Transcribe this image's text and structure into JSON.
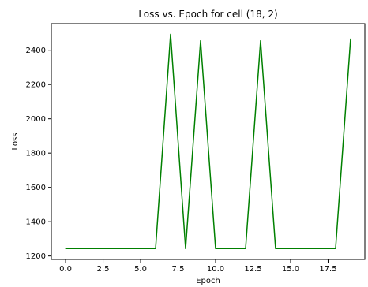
{
  "chart_data": {
    "type": "line",
    "title": "Loss vs. Epoch for cell (18, 2)",
    "xlabel": "Epoch",
    "ylabel": "Loss",
    "xlim": [
      -0.95,
      19.95
    ],
    "ylim": [
      1180,
      2555
    ],
    "x_ticks": [
      "0.0",
      "2.5",
      "5.0",
      "7.5",
      "10.0",
      "12.5",
      "15.0",
      "17.5"
    ],
    "x_tick_values": [
      0,
      2.5,
      5,
      7.5,
      10,
      12.5,
      15,
      17.5
    ],
    "y_ticks": [
      "1200",
      "1400",
      "1600",
      "1800",
      "2000",
      "2200",
      "2400"
    ],
    "y_tick_values": [
      1200,
      1400,
      1600,
      1800,
      2000,
      2200,
      2400
    ],
    "grid": false,
    "series": [
      {
        "color": "#008000",
        "x": [
          0,
          1,
          2,
          3,
          4,
          5,
          6,
          7,
          8,
          9,
          10,
          11,
          12,
          13,
          14,
          15,
          16,
          17,
          18,
          19
        ],
        "values": [
          1243,
          1243,
          1243,
          1243,
          1243,
          1243,
          1243,
          2493,
          1243,
          2455,
          1243,
          1243,
          1243,
          2455,
          1243,
          1243,
          1243,
          1243,
          1243,
          2466
        ]
      }
    ]
  }
}
